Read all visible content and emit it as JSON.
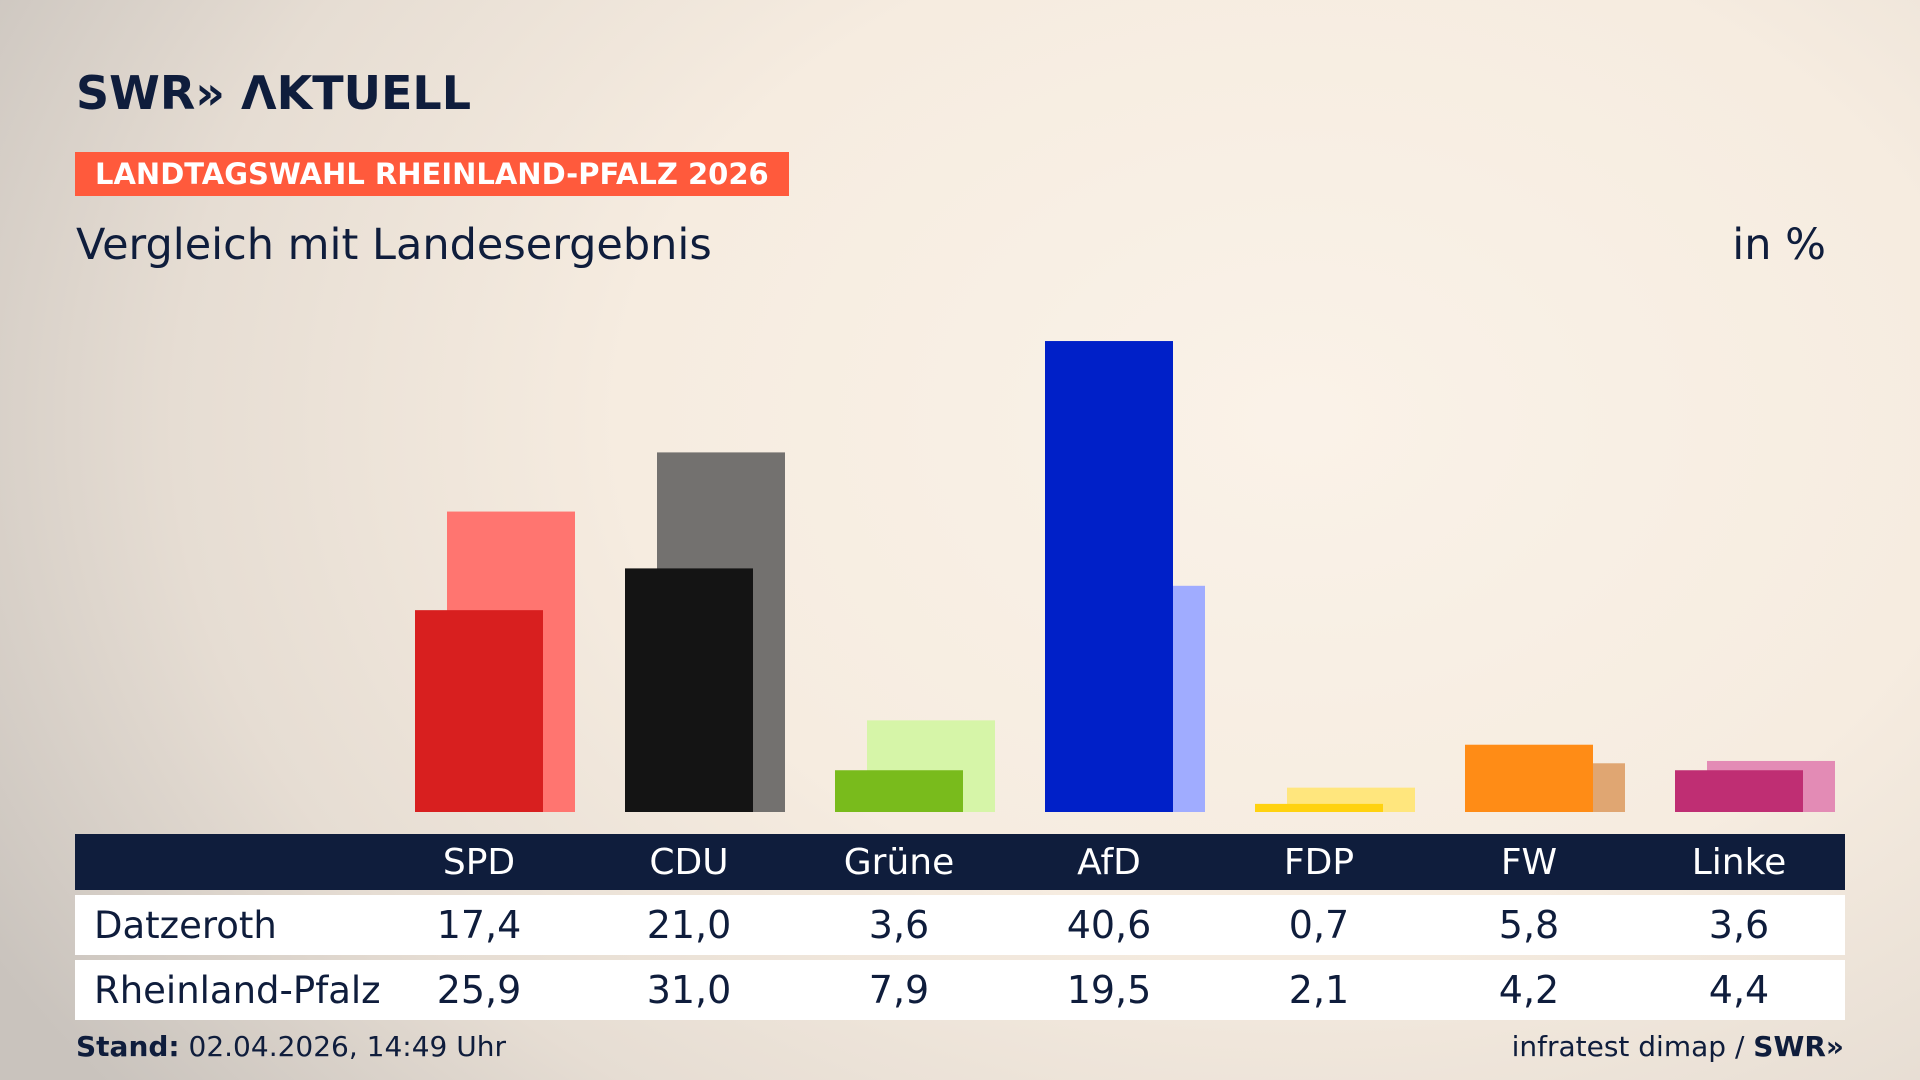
{
  "brand": {
    "logo_text": "SWR» ΛKTUELL"
  },
  "badge": "LANDTAGSWAHL RHEINLAND-PFALZ 2026",
  "subtitle": "Vergleich mit Landesergebnis",
  "unit": "in %",
  "colors": {
    "SPD": [
      "#d81f1f",
      "#ff7570"
    ],
    "CDU": [
      "#141414",
      "#73716f"
    ],
    "Grüne": [
      "#79bb1c",
      "#d6f5a8"
    ],
    "AfD": [
      "#0020c8",
      "#a0acff"
    ],
    "FDP": [
      "#ffd210",
      "#ffe67d"
    ],
    "FW": [
      "#ff8c16",
      "#e0a672"
    ],
    "Linke": [
      "#bf2e73",
      "#e38bb5"
    ]
  },
  "chart_data": {
    "type": "bar",
    "categories": [
      "SPD",
      "CDU",
      "Grüne",
      "AfD",
      "FDP",
      "FW",
      "Linke"
    ],
    "series": [
      {
        "name": "Datzeroth",
        "values": [
          17.4,
          21.0,
          3.6,
          40.6,
          0.7,
          5.8,
          3.6
        ]
      },
      {
        "name": "Rheinland-Pfalz",
        "values": [
          25.9,
          31.0,
          7.9,
          19.5,
          2.1,
          4.2,
          4.4
        ]
      }
    ],
    "title": "Vergleich mit Landesergebnis",
    "ylabel": "in %",
    "ylim": [
      0,
      45
    ],
    "grid": false
  },
  "table": {
    "rows": [
      {
        "label": "Datzeroth",
        "values": [
          "17,4",
          "21,0",
          "3,6",
          "40,6",
          "0,7",
          "5,8",
          "3,6"
        ]
      },
      {
        "label": "Rheinland-Pfalz",
        "values": [
          "25,9",
          "31,0",
          "7,9",
          "19,5",
          "2,1",
          "4,2",
          "4,4"
        ]
      }
    ]
  },
  "footer": {
    "stand_label": "Stand:",
    "stand_value": "02.04.2026, 14:49 Uhr",
    "source": "infratest dimap /",
    "source_brand": "SWR»"
  }
}
